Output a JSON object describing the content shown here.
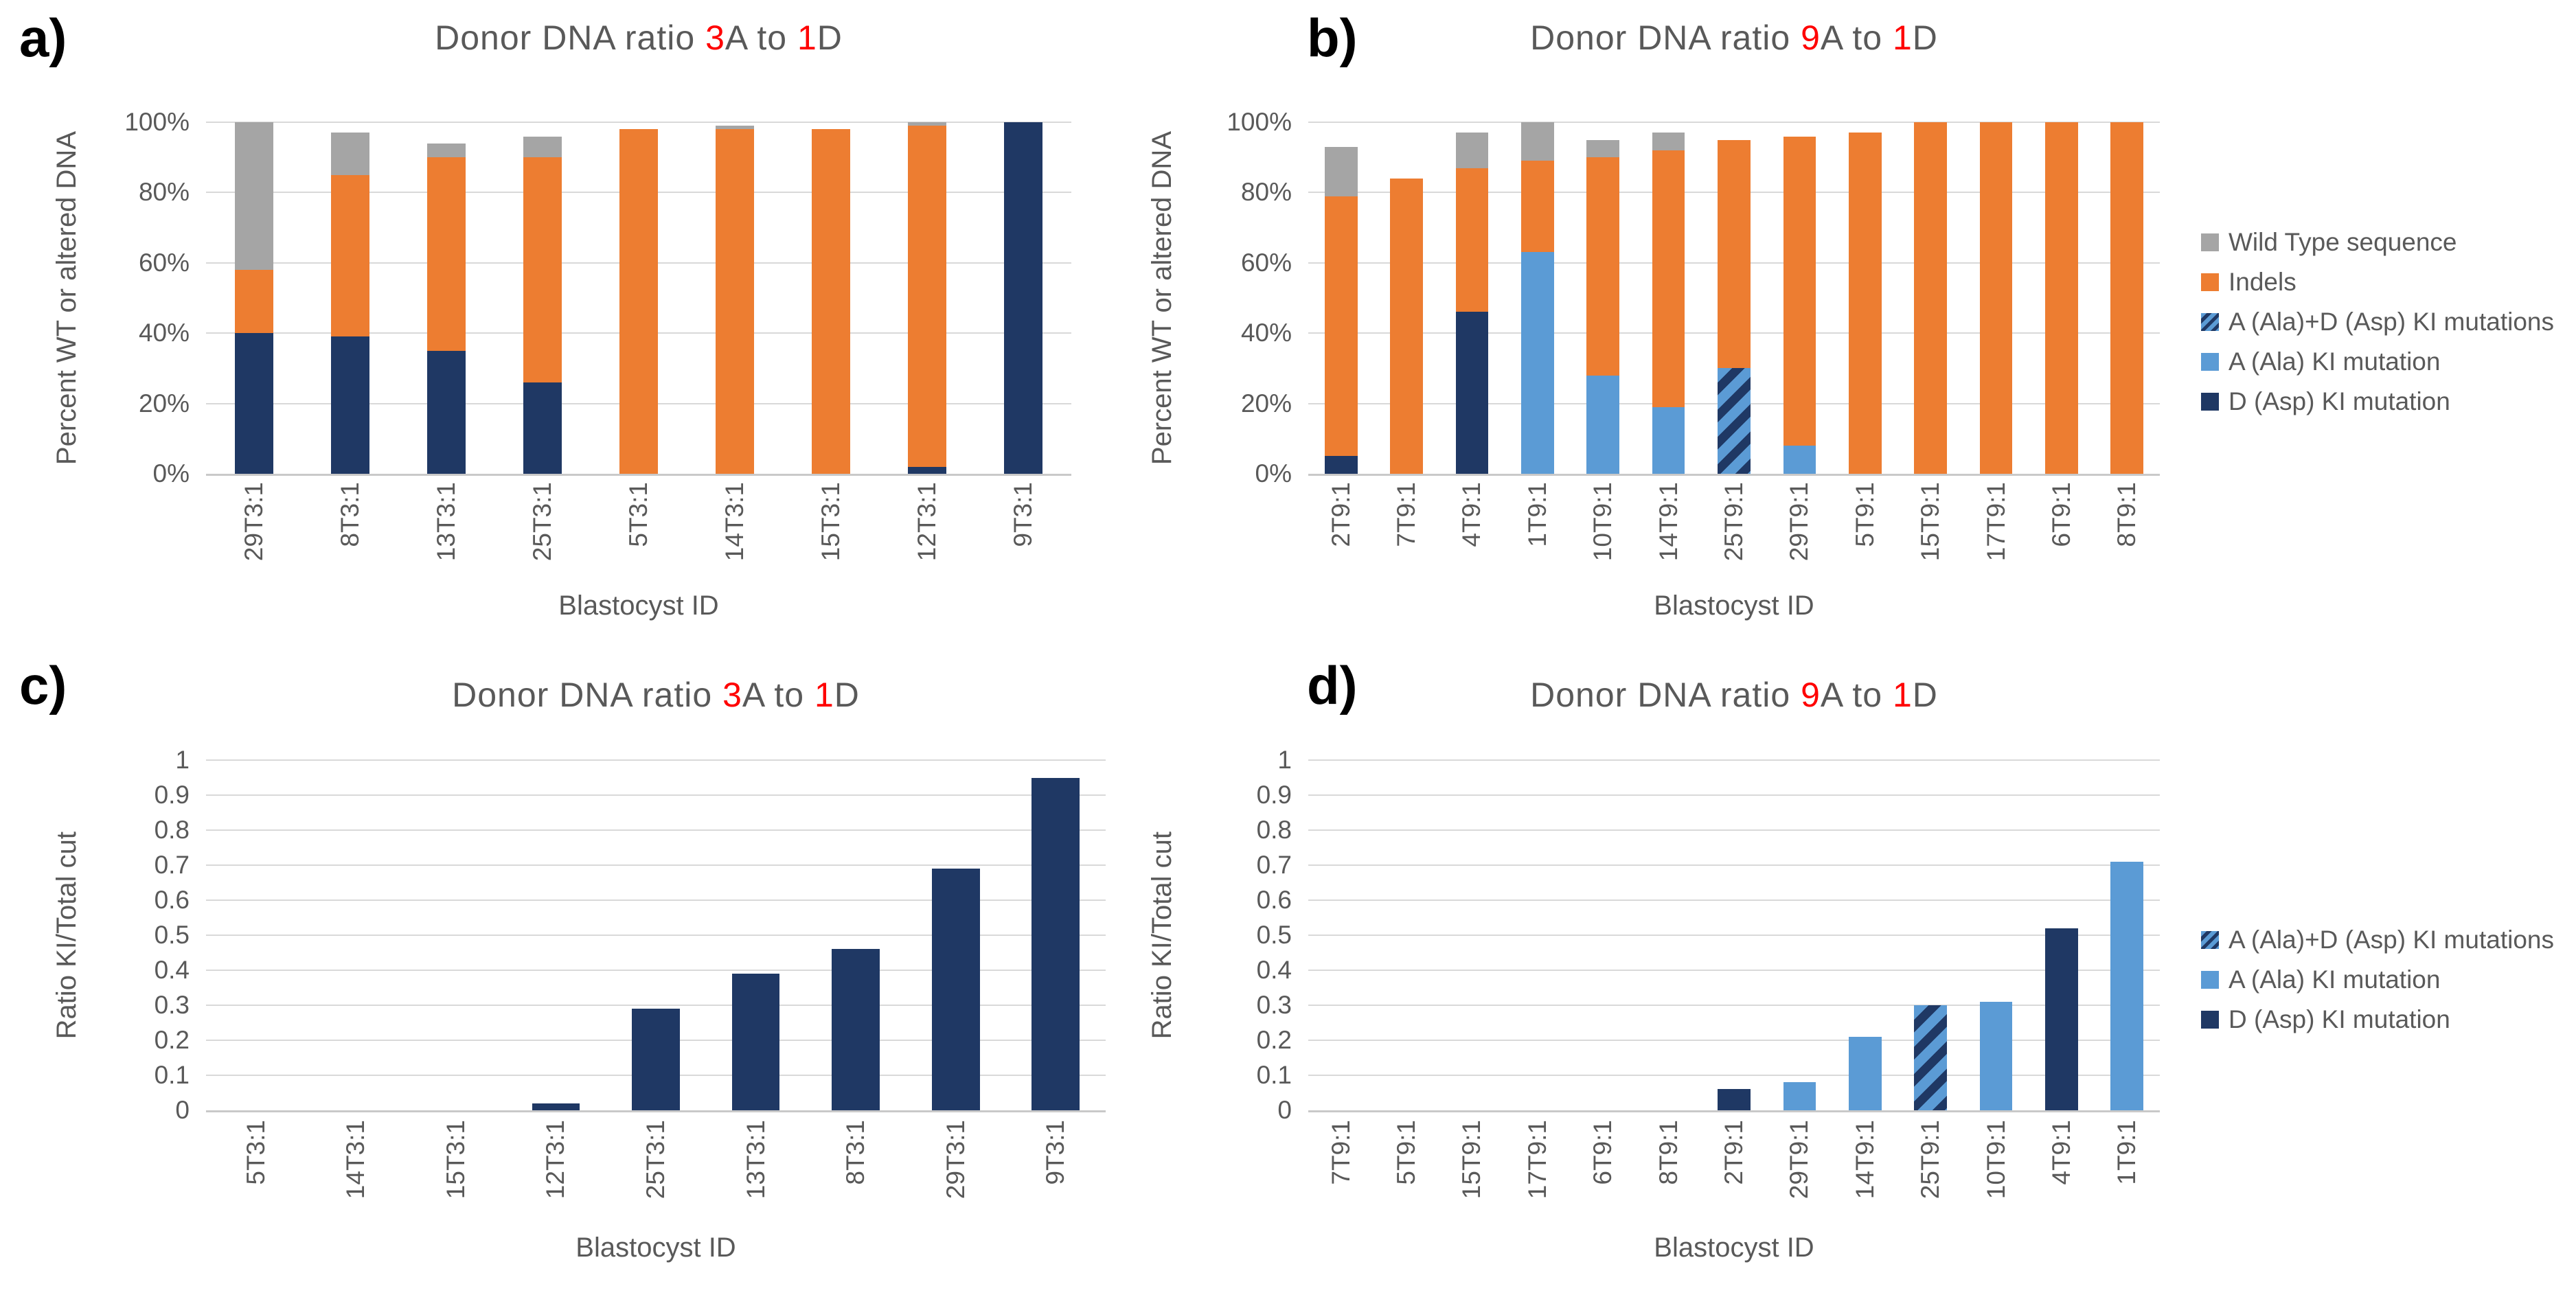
{
  "colors": {
    "wild_type": "#A5A5A5",
    "indels": "#ED7D31",
    "a_ki": "#5B9BD5",
    "d_ki": "#1F3864",
    "ad_ki_stripe_bg": "#5B9BD5",
    "ad_ki_stripe_fg": "#1F3864",
    "title_text": "#595959",
    "axis_text": "#595959",
    "red_accent": "#FF0000",
    "gridline": "#D9D9D9"
  },
  "chart_data": [
    {
      "panel_label": "a)",
      "type": "stacked_bar",
      "title_plain": "Donor DNA ratio 3A to 1D",
      "title_parts": [
        {
          "t": "Donor DNA ratio "
        },
        {
          "t": "3",
          "red": true
        },
        {
          "t": "A to "
        },
        {
          "t": "1",
          "red": true
        },
        {
          "t": "D"
        }
      ],
      "ylabel": "Percent WT or altered DNA",
      "xlabel": "Blastocyst ID",
      "ylim": [
        0,
        100
      ],
      "grid": true,
      "bar_width_frac": 0.4,
      "yticks": [
        {
          "v": 100,
          "label": "100%"
        },
        {
          "v": 80,
          "label": "80%"
        },
        {
          "v": 60,
          "label": "60%"
        },
        {
          "v": 40,
          "label": "40%"
        },
        {
          "v": 20,
          "label": "20%"
        },
        {
          "v": 0,
          "label": "0%"
        }
      ],
      "categories": [
        "29T3:1",
        "8T3:1",
        "13T3:1",
        "25T3:1",
        "5T3:1",
        "14T3:1",
        "15T3:1",
        "12T3:1",
        "9T3:1"
      ],
      "series": [
        {
          "key": "d",
          "name": "D (Asp) KI mutation",
          "values": [
            40,
            39,
            35,
            26,
            0,
            0,
            0,
            2,
            100
          ]
        },
        {
          "key": "a",
          "name": "A (Ala) KI mutation",
          "values": [
            0,
            0,
            0,
            0,
            0,
            0,
            0,
            0,
            0
          ]
        },
        {
          "key": "ad",
          "name": "A (Ala)+D (Asp) KI mutations",
          "values": [
            0,
            0,
            0,
            0,
            0,
            0,
            0,
            0,
            0
          ]
        },
        {
          "key": "indels",
          "name": "Indels",
          "values": [
            18,
            46,
            55,
            64,
            98,
            98,
            98,
            97,
            0
          ]
        },
        {
          "key": "wt",
          "name": "Wild Type sequence",
          "values": [
            42,
            12,
            4,
            6,
            0,
            1,
            0,
            1,
            0
          ]
        }
      ]
    },
    {
      "panel_label": "b)",
      "type": "stacked_bar",
      "title_plain": "Donor DNA ratio 9A to 1D",
      "title_parts": [
        {
          "t": "Donor DNA ratio "
        },
        {
          "t": "9",
          "red": true
        },
        {
          "t": "A to "
        },
        {
          "t": "1",
          "red": true
        },
        {
          "t": "D"
        }
      ],
      "ylabel": "Percent WT or altered DNA",
      "xlabel": "Blastocyst ID",
      "ylim": [
        0,
        100
      ],
      "grid": true,
      "bar_width_frac": 0.5,
      "yticks": [
        {
          "v": 100,
          "label": "100%"
        },
        {
          "v": 80,
          "label": "80%"
        },
        {
          "v": 60,
          "label": "60%"
        },
        {
          "v": 40,
          "label": "40%"
        },
        {
          "v": 20,
          "label": "20%"
        },
        {
          "v": 0,
          "label": "0%"
        }
      ],
      "categories": [
        "2T9:1",
        "7T9:1",
        "4T9:1",
        "1T9:1",
        "10T9:1",
        "14T9:1",
        "25T9:1",
        "29T9:1",
        "5T9:1",
        "15T9:1",
        "17T9:1",
        "6T9:1",
        "8T9:1"
      ],
      "series": [
        {
          "key": "d",
          "name": "D (Asp) KI mutation",
          "values": [
            5,
            0,
            46,
            0,
            0,
            0,
            0,
            0,
            0,
            0,
            0,
            0,
            0
          ]
        },
        {
          "key": "a",
          "name": "A (Ala) KI mutation",
          "values": [
            0,
            0,
            0,
            63,
            28,
            19,
            0,
            8,
            0,
            0,
            0,
            0,
            0
          ]
        },
        {
          "key": "ad",
          "name": "A (Ala)+D (Asp) KI mutations",
          "values": [
            0,
            0,
            0,
            0,
            0,
            0,
            30,
            0,
            0,
            0,
            0,
            0,
            0
          ]
        },
        {
          "key": "indels",
          "name": "Indels",
          "values": [
            74,
            84,
            41,
            26,
            62,
            73,
            65,
            88,
            97,
            100,
            100,
            100,
            100
          ]
        },
        {
          "key": "wt",
          "name": "Wild Type sequence",
          "values": [
            14,
            0,
            10,
            11,
            5,
            5,
            0,
            0,
            0,
            0,
            0,
            0,
            0
          ]
        }
      ],
      "legend": [
        {
          "key": "wt",
          "label": "Wild Type sequence"
        },
        {
          "key": "indels",
          "label": "Indels"
        },
        {
          "key": "ad",
          "label": "A (Ala)+D (Asp) KI mutations"
        },
        {
          "key": "a",
          "label": "A (Ala) KI mutation"
        },
        {
          "key": "d",
          "label": "D (Asp) KI mutation"
        }
      ]
    },
    {
      "panel_label": "c)",
      "type": "bar",
      "title_plain": "Donor DNA ratio 3A to 1D",
      "title_parts": [
        {
          "t": "Donor DNA ratio "
        },
        {
          "t": "3",
          "red": true
        },
        {
          "t": "A to "
        },
        {
          "t": "1",
          "red": true
        },
        {
          "t": "D"
        }
      ],
      "ylabel": "Ratio KI/Total cut",
      "xlabel": "Blastocyst ID",
      "ylim": [
        0,
        1
      ],
      "grid": true,
      "bar_width_frac": 0.48,
      "yticks": [
        {
          "v": 1,
          "label": "1"
        },
        {
          "v": 0.9,
          "label": "0.9"
        },
        {
          "v": 0.8,
          "label": "0.8"
        },
        {
          "v": 0.7,
          "label": "0.7"
        },
        {
          "v": 0.6,
          "label": "0.6"
        },
        {
          "v": 0.5,
          "label": "0.5"
        },
        {
          "v": 0.4,
          "label": "0.4"
        },
        {
          "v": 0.3,
          "label": "0.3"
        },
        {
          "v": 0.2,
          "label": "0.2"
        },
        {
          "v": 0.1,
          "label": "0.1"
        },
        {
          "v": 0,
          "label": "0"
        }
      ],
      "categories": [
        "5T3:1",
        "14T3:1",
        "15T3:1",
        "12T3:1",
        "25T3:1",
        "13T3:1",
        "8T3:1",
        "29T3:1",
        "9T3:1"
      ],
      "values": [
        0,
        0,
        0,
        0.02,
        0.29,
        0.39,
        0.46,
        0.69,
        0.95
      ],
      "bar_keys": [
        "d",
        "d",
        "d",
        "d",
        "d",
        "d",
        "d",
        "d",
        "d"
      ]
    },
    {
      "panel_label": "d)",
      "type": "bar",
      "title_plain": "Donor DNA ratio 9A to 1D",
      "title_parts": [
        {
          "t": "Donor DNA ratio "
        },
        {
          "t": "9",
          "red": true
        },
        {
          "t": "A to "
        },
        {
          "t": "1",
          "red": true
        },
        {
          "t": "D"
        }
      ],
      "ylabel": "Ratio KI/Total cut",
      "xlabel": "Blastocyst ID",
      "ylim": [
        0,
        1
      ],
      "grid": true,
      "bar_width_frac": 0.5,
      "yticks": [
        {
          "v": 1,
          "label": "1"
        },
        {
          "v": 0.9,
          "label": "0.9"
        },
        {
          "v": 0.8,
          "label": "0.8"
        },
        {
          "v": 0.7,
          "label": "0.7"
        },
        {
          "v": 0.6,
          "label": "0.6"
        },
        {
          "v": 0.5,
          "label": "0.5"
        },
        {
          "v": 0.4,
          "label": "0.4"
        },
        {
          "v": 0.3,
          "label": "0.3"
        },
        {
          "v": 0.2,
          "label": "0.2"
        },
        {
          "v": 0.1,
          "label": "0.1"
        },
        {
          "v": 0,
          "label": "0"
        }
      ],
      "categories": [
        "7T9:1",
        "5T9:1",
        "15T9:1",
        "17T9:1",
        "6T9:1",
        "8T9:1",
        "2T9:1",
        "29T9:1",
        "14T9:1",
        "25T9:1",
        "10T9:1",
        "4T9:1",
        "1T9:1"
      ],
      "values": [
        0,
        0,
        0,
        0,
        0,
        0,
        0.06,
        0.08,
        0.21,
        0.3,
        0.31,
        0.52,
        0.71
      ],
      "bar_keys": [
        "d",
        "d",
        "d",
        "d",
        "d",
        "d",
        "d",
        "a",
        "a",
        "ad",
        "a",
        "d",
        "a"
      ],
      "legend": [
        {
          "key": "ad",
          "label": "A (Ala)+D (Asp) KI mutations"
        },
        {
          "key": "a",
          "label": "A (Ala) KI mutation"
        },
        {
          "key": "d",
          "label": "D (Asp) KI mutation"
        }
      ]
    }
  ]
}
